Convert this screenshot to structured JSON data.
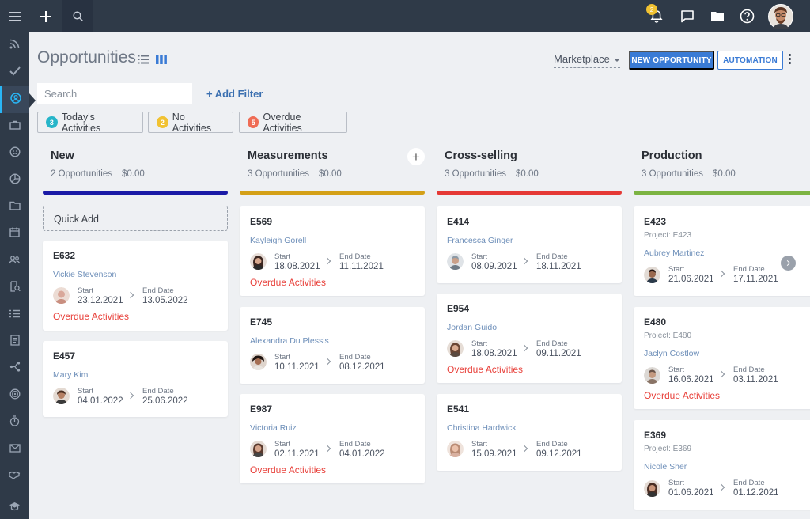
{
  "topbar": {
    "menu_icon": "hamburger-icon",
    "add_icon": "plus-icon",
    "search_icon": "search-icon",
    "notification_badge": "2",
    "right_icons": [
      "bell-icon",
      "chat-icon",
      "folder-icon",
      "help-icon",
      "avatar"
    ]
  },
  "sidebar": {
    "items": [
      "rss-icon",
      "check-icon",
      "contacts-icon",
      "briefcase-icon",
      "support-icon",
      "pie-chart-icon",
      "folder-icon",
      "calendar-icon",
      "users-icon",
      "search-doc-icon",
      "list-icon",
      "document-icon",
      "flow-icon",
      "target-icon",
      "timer-icon",
      "mail-icon",
      "handshake-icon",
      "graduation-icon"
    ],
    "active_index": 2
  },
  "header": {
    "title": "Opportunities",
    "pipeline": "Marketplace",
    "new_button": "NEW OPPORTUNITY",
    "automation_button": "AUTOMATION"
  },
  "filters": {
    "search_placeholder": "Search",
    "add_filter": "+ Add Filter",
    "chips": [
      {
        "count": "3",
        "label": "Today's Activities",
        "color": "#26b5c9"
      },
      {
        "count": "2",
        "label": "No Activities",
        "color": "#f1c232"
      },
      {
        "count": "5",
        "label": "Overdue Activities",
        "color": "#ef6c55"
      }
    ]
  },
  "columns": [
    {
      "title": "New",
      "count": "2 Opportunities",
      "amount": "$0.00",
      "color": "#1a1aa6",
      "quick_add": "Quick Add",
      "cards": [
        {
          "id": "E632",
          "person": "Vickie Stevenson",
          "start_label": "Start",
          "start": "23.12.2021",
          "end_label": "End Date",
          "end": "13.05.2022",
          "overdue": "Overdue Activities",
          "avatar_color": "#d9a89a"
        },
        {
          "id": "E457",
          "person": "Mary Kim",
          "start_label": "Start",
          "start": "04.01.2022",
          "end_label": "End Date",
          "end": "25.06.2022",
          "overdue": "",
          "avatar_color": "#6b4a3a"
        }
      ]
    },
    {
      "title": "Measurements",
      "count": "3 Opportunities",
      "amount": "$0.00",
      "color": "#d4a017",
      "cards": [
        {
          "id": "E569",
          "person": "Kayleigh Gorell",
          "start_label": "Start",
          "start": "18.08.2021",
          "end_label": "End Date",
          "end": "11.11.2021",
          "overdue": "Overdue Activities",
          "avatar_color": "#5a3d33"
        },
        {
          "id": "E745",
          "person": "Alexandra Du Plessis",
          "start_label": "Start",
          "start": "10.11.2021",
          "end_label": "End Date",
          "end": "08.12.2021",
          "overdue": "",
          "avatar_color": "#3b2a22"
        },
        {
          "id": "E987",
          "person": "Victoria Ruiz",
          "start_label": "Start",
          "start": "02.11.2021",
          "end_label": "End Date",
          "end": "04.01.2022",
          "overdue": "Overdue Activities",
          "avatar_color": "#6b4f45"
        }
      ]
    },
    {
      "title": "Cross-selling",
      "count": "3 Opportunities",
      "amount": "$0.00",
      "color": "#e53935",
      "cards": [
        {
          "id": "E414",
          "person": "Francesca Ginger",
          "start_label": "Start",
          "start": "08.09.2021",
          "end_label": "End Date",
          "end": "18.11.2021",
          "overdue": "",
          "avatar_color": "#8d9aa6"
        },
        {
          "id": "E954",
          "person": "Jordan Guido",
          "start_label": "Start",
          "start": "18.08.2021",
          "end_label": "End Date",
          "end": "09.11.2021",
          "overdue": "Overdue Activities",
          "avatar_color": "#7a5a48"
        },
        {
          "id": "E541",
          "person": "Christina Hardwick",
          "start_label": "Start",
          "start": "15.09.2021",
          "end_label": "End Date",
          "end": "09.12.2021",
          "overdue": "",
          "avatar_color": "#d8b0a0"
        }
      ]
    },
    {
      "title": "Production",
      "count": "3 Opportunities",
      "amount": "$0.00",
      "color": "#7cb342",
      "cards": [
        {
          "id": "E423",
          "project": "Project: E423",
          "person": "Aubrey Martinez",
          "start_label": "Start",
          "start": "21.06.2021",
          "end_label": "End Date",
          "end": "17.11.2021",
          "overdue": "",
          "avatar_color": "#4a3a30"
        },
        {
          "id": "E480",
          "project": "Project: E480",
          "person": "Jaclyn Costlow",
          "start_label": "Start",
          "start": "16.06.2021",
          "end_label": "End Date",
          "end": "03.11.2021",
          "overdue": "Overdue Activities",
          "avatar_color": "#8a7466"
        },
        {
          "id": "E369",
          "project": "Project: E369",
          "person": "Nicole Sher",
          "start_label": "Start",
          "start": "01.06.2021",
          "end_label": "End Date",
          "end": "01.12.2021",
          "overdue": "",
          "avatar_color": "#5a4034"
        }
      ]
    }
  ]
}
